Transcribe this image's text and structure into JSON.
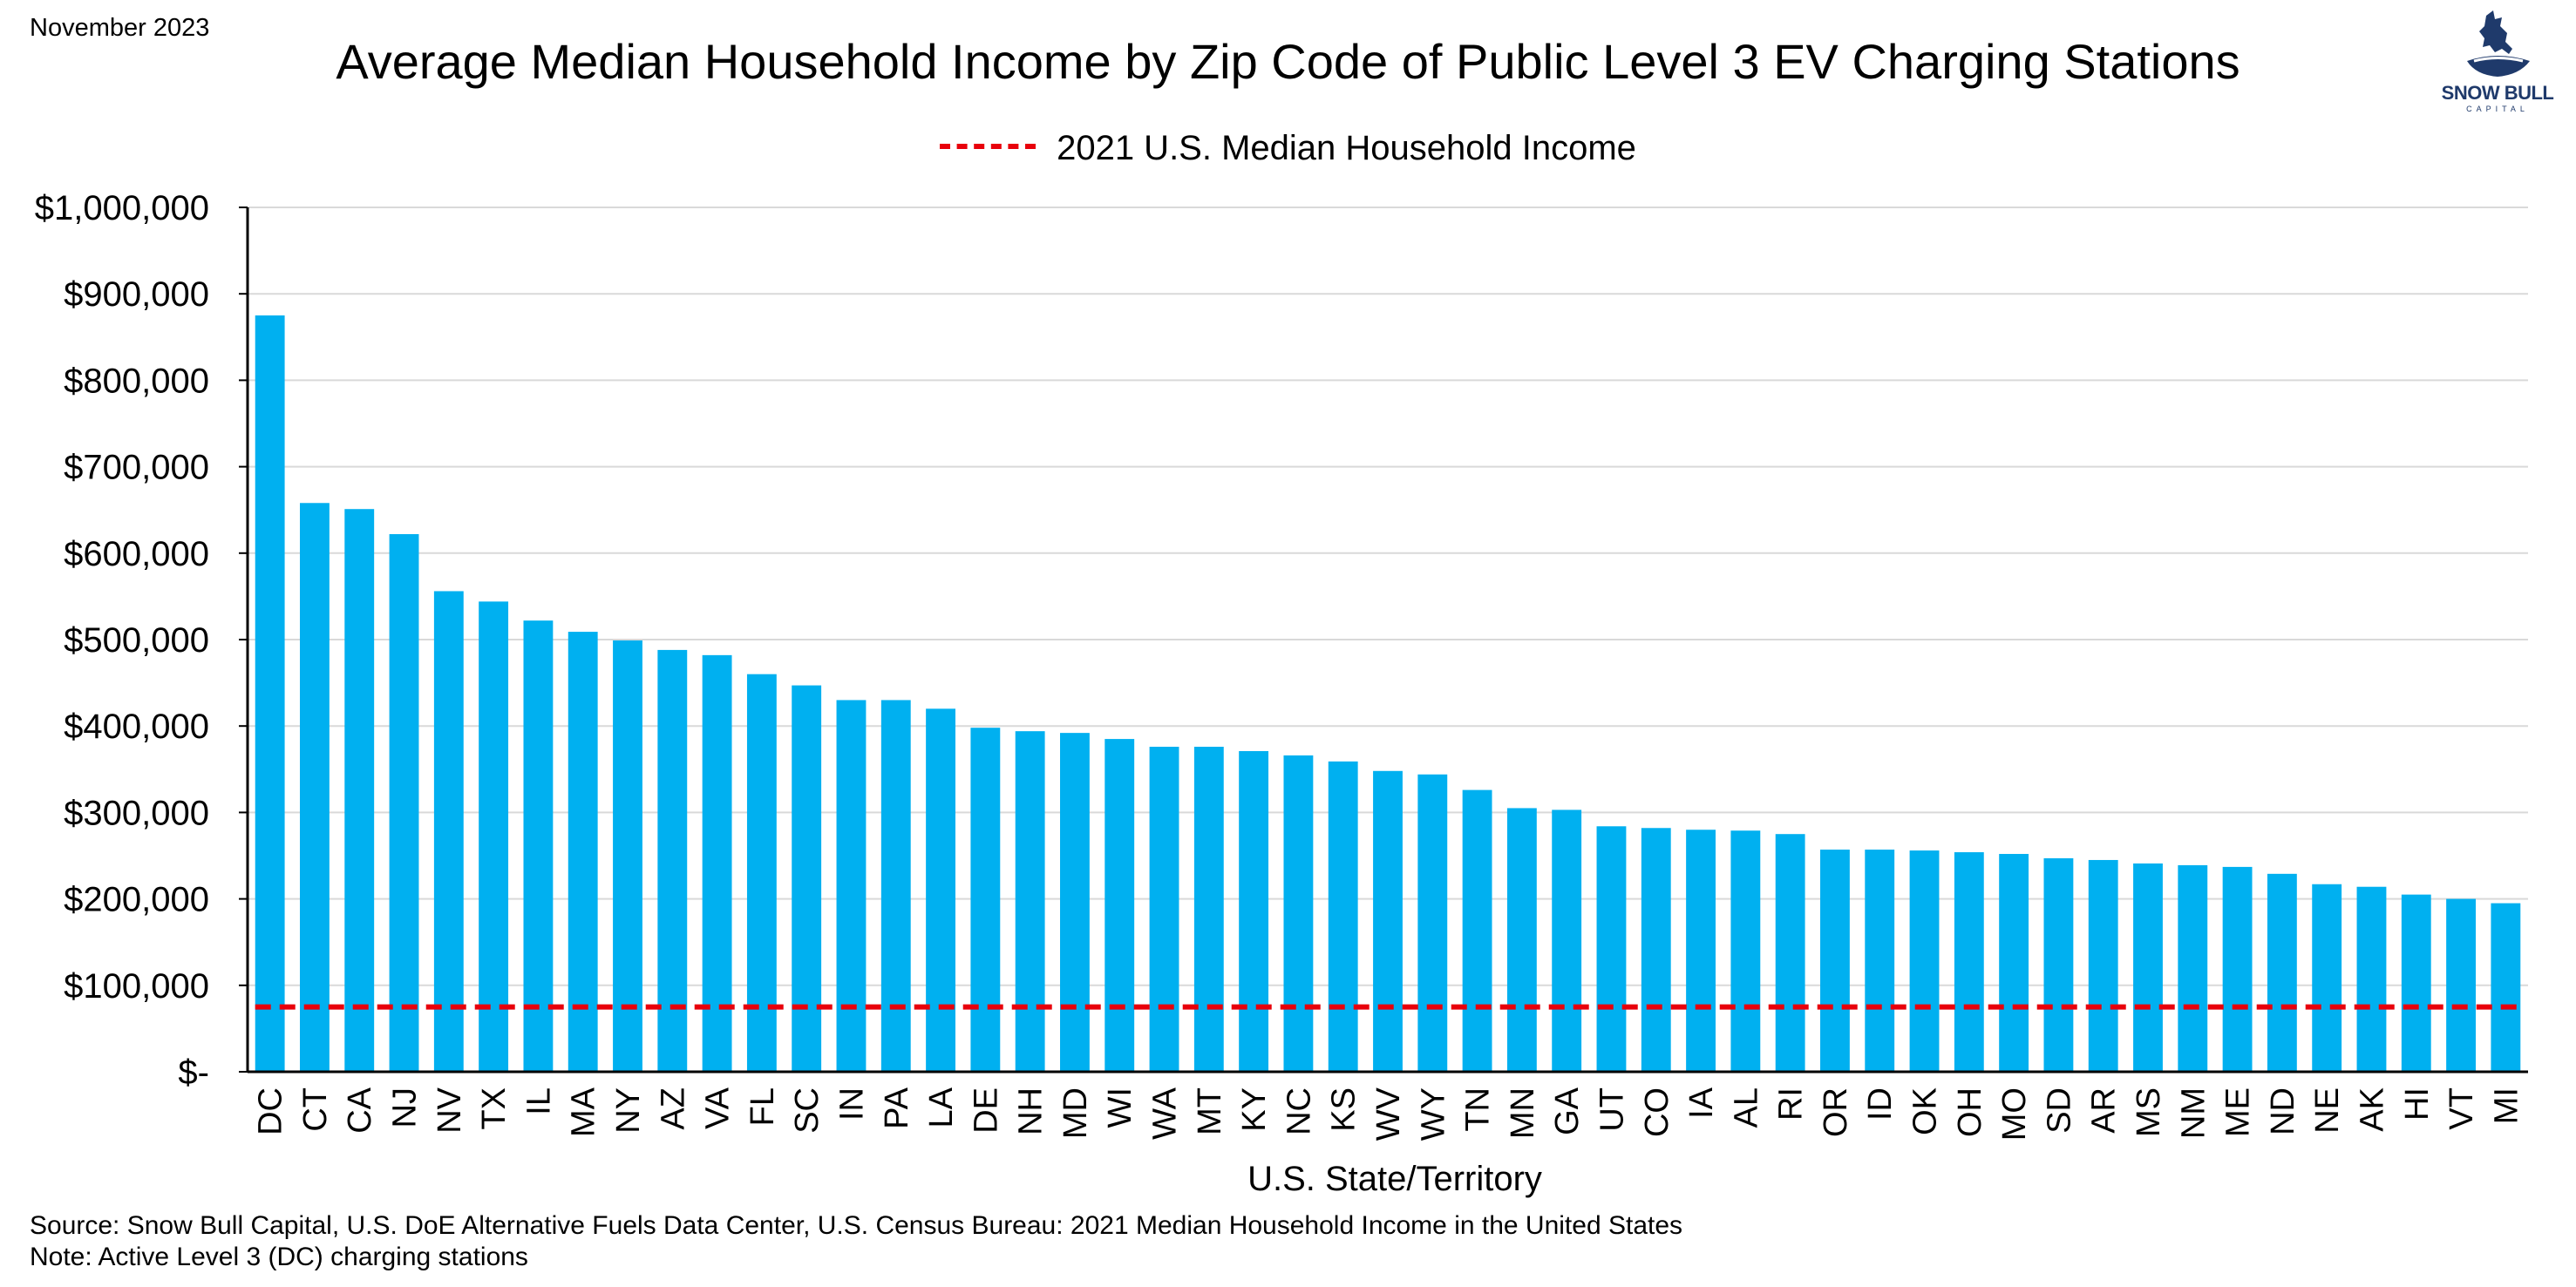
{
  "header": {
    "date": "November 2023",
    "title": "Average Median Household Income by Zip Code of Public Level 3 EV Charging Stations"
  },
  "legend": {
    "label": "2021 U.S. Median Household Income"
  },
  "logo": {
    "text": "SNOW BULL",
    "subtext": "CAPITAL"
  },
  "footer": {
    "source": "Source: Snow Bull Capital, U.S. DoE Alternative Fuels Data Center, U.S. Census Bureau: 2021 Median Household Income in the United States",
    "note": "Note: Active Level 3 (DC) charging stations"
  },
  "chart_data": {
    "type": "bar",
    "title": "Average Median Household Income by Zip Code of Public Level 3 EV Charging Stations",
    "xlabel": "U.S. State/Territory",
    "ylabel": "",
    "ylim": [
      0,
      1000000
    ],
    "yticks": [
      0,
      100000,
      200000,
      300000,
      400000,
      500000,
      600000,
      700000,
      800000,
      900000,
      1000000
    ],
    "ytick_labels": [
      "$-",
      "$100,000",
      "$200,000",
      "$300,000",
      "$400,000",
      "$500,000",
      "$600,000",
      "$700,000",
      "$800,000",
      "$900,000",
      "$1,000,000"
    ],
    "grid": true,
    "legend_position": "top-center",
    "categories": [
      "DC",
      "CT",
      "CA",
      "NJ",
      "NV",
      "TX",
      "IL",
      "MA",
      "NY",
      "AZ",
      "VA",
      "FL",
      "SC",
      "IN",
      "PA",
      "LA",
      "DE",
      "NH",
      "MD",
      "WI",
      "WA",
      "MT",
      "KY",
      "NC",
      "KS",
      "WV",
      "WY",
      "TN",
      "MN",
      "GA",
      "UT",
      "CO",
      "IA",
      "AL",
      "RI",
      "OR",
      "ID",
      "OK",
      "OH",
      "MO",
      "SD",
      "AR",
      "MS",
      "NM",
      "ME",
      "ND",
      "NE",
      "AK",
      "HI",
      "VT",
      "MI"
    ],
    "values": [
      875000,
      658000,
      651000,
      622000,
      556000,
      544000,
      522000,
      509000,
      499000,
      488000,
      482000,
      460000,
      447000,
      430000,
      430000,
      420000,
      398000,
      394000,
      392000,
      385000,
      376000,
      376000,
      371000,
      366000,
      359000,
      348000,
      344000,
      326000,
      305000,
      303000,
      284000,
      282000,
      280000,
      279000,
      275000,
      257000,
      257000,
      256000,
      254000,
      252000,
      247000,
      245000,
      241000,
      239000,
      237000,
      229000,
      217000,
      214000,
      205000,
      200000,
      195000
    ],
    "reference_line": {
      "name": "2021 U.S. Median Household Income",
      "value": 75000
    },
    "colors": {
      "bar": "#00b0f0",
      "reference": "#e8000b",
      "grid": "#d9d9d9",
      "axis": "#000000"
    }
  }
}
